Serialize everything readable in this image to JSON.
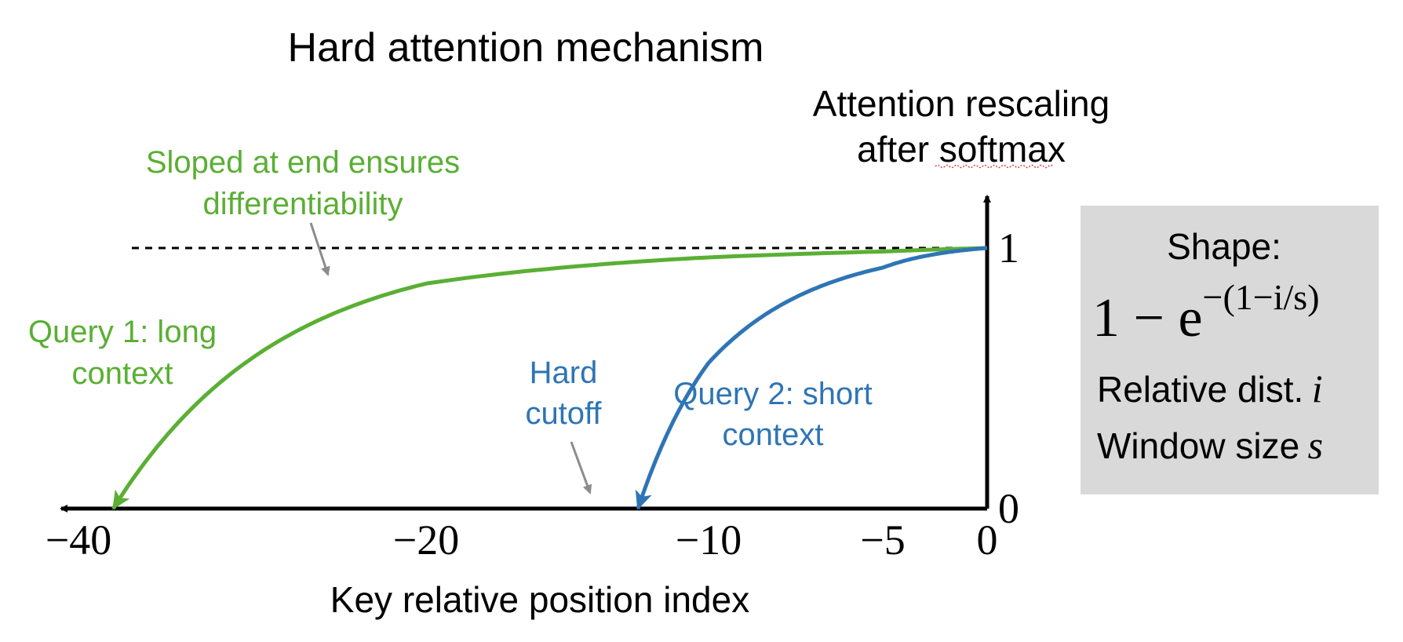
{
  "title": "Hard attention mechanism",
  "y_axis_label": [
    "Attention rescaling",
    "after softmax"
  ],
  "x_axis_label": "Key relative position index",
  "annotations": {
    "sloped": [
      "Sloped at end ensures",
      "differentiability"
    ],
    "query1": [
      "Query 1: long",
      "context"
    ],
    "hard_cutoff": [
      "Hard",
      "cutoff"
    ],
    "query2": [
      "Query 2: short",
      "context"
    ]
  },
  "formula_box": {
    "heading": "Shape:",
    "formula_base": "1 − e",
    "formula_exponent": "−(1−i/s)",
    "var1_label": "Relative dist.",
    "var1_symbol": "i",
    "var2_label": "Window size",
    "var2_symbol": "s"
  },
  "colors": {
    "query1": "#5aaf34",
    "query2": "#2f75b5",
    "axis": "#000000",
    "annotation_arrow": "#8c8c8c",
    "box_fill": "#d9d9d9"
  },
  "chart_data": {
    "type": "line",
    "x_ticks": [
      "−40",
      "−20",
      "−10",
      "−5",
      "0"
    ],
    "y_ticks": [
      "1",
      "0"
    ],
    "xlim": [
      -40,
      0
    ],
    "ylim": [
      0,
      1
    ],
    "reference_line_y": 1,
    "series": [
      {
        "name": "Query 1: long context",
        "window_size": 38,
        "color": "#5aaf34"
      },
      {
        "name": "Query 2: short context",
        "window_size": 12.5,
        "color": "#2f75b5"
      }
    ]
  }
}
